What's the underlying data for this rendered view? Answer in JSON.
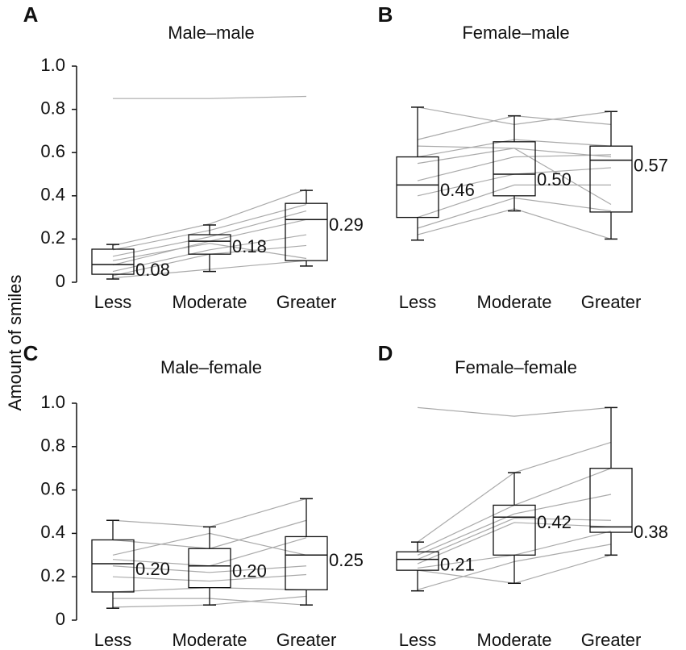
{
  "ylabel": "Amount of smiles",
  "chart_data": [
    {
      "type": "box",
      "panel": "A",
      "title": "Male–male",
      "categories": [
        "Less",
        "Moderate",
        "Greater"
      ],
      "ylim": [
        0,
        1
      ],
      "yticks": [
        0,
        0.2,
        0.4,
        0.6,
        0.8,
        {
          "value": 1,
          "label": "1.0"
        }
      ],
      "boxes": [
        {
          "min": 0.015,
          "q1": 0.037,
          "median": 0.082,
          "q3": 0.153,
          "max": 0.175
        },
        {
          "min": 0.05,
          "q1": 0.13,
          "median": 0.19,
          "q3": 0.22,
          "max": 0.265
        },
        {
          "min": 0.075,
          "q1": 0.1,
          "median": 0.29,
          "q3": 0.365,
          "max": 0.425
        }
      ],
      "means": [
        0.08,
        0.18,
        0.29
      ],
      "value_labels": [
        "0.08",
        "0.18",
        "0.29"
      ],
      "line_color": "#aaaaaa",
      "subjects": [
        {
          "values": [
            0.85,
            0.85,
            0.86
          ]
        },
        {
          "values": [
            0.17,
            0.27,
            0.43
          ]
        },
        {
          "values": [
            0.15,
            0.24,
            0.36
          ]
        },
        {
          "values": [
            0.12,
            0.21,
            0.33
          ]
        },
        {
          "values": [
            0.08,
            0.19,
            0.29
          ]
        },
        {
          "values": [
            0.05,
            0.15,
            0.22
          ]
        },
        {
          "values": [
            0.03,
            0.13,
            0.17
          ]
        },
        {
          "values": [
            0.02,
            0.06,
            0.1
          ]
        },
        {
          "values": [
            0.1,
            0.18,
            0.11
          ]
        }
      ]
    },
    {
      "type": "box",
      "panel": "B",
      "title": "Female–male",
      "categories": [
        "Less",
        "Moderate",
        "Greater"
      ],
      "ylim": [
        0,
        1
      ],
      "boxes": [
        {
          "min": 0.195,
          "q1": 0.3,
          "median": 0.45,
          "q3": 0.58,
          "max": 0.81
        },
        {
          "min": 0.33,
          "q1": 0.4,
          "median": 0.5,
          "q3": 0.65,
          "max": 0.77
        },
        {
          "min": 0.2,
          "q1": 0.325,
          "median": 0.565,
          "q3": 0.63,
          "max": 0.79
        }
      ],
      "means": [
        0.46,
        0.5,
        0.57
      ],
      "value_labels": [
        "0.46",
        "0.50",
        "0.57"
      ],
      "line_color": "#aaaaaa",
      "subjects": [
        {
          "values": [
            0.81,
            0.73,
            0.79
          ]
        },
        {
          "values": [
            0.66,
            0.77,
            0.73
          ]
        },
        {
          "values": [
            0.58,
            0.66,
            0.63
          ]
        },
        {
          "values": [
            0.55,
            0.62,
            0.58
          ]
        },
        {
          "values": [
            0.47,
            0.58,
            0.59
          ]
        },
        {
          "values": [
            0.4,
            0.5,
            0.53
          ]
        },
        {
          "values": [
            0.3,
            0.45,
            0.45
          ]
        },
        {
          "values": [
            0.25,
            0.39,
            0.33
          ]
        },
        {
          "values": [
            0.22,
            0.34,
            0.2
          ]
        },
        {
          "values": [
            0.63,
            0.62,
            0.36
          ]
        }
      ]
    },
    {
      "type": "box",
      "panel": "C",
      "title": "Male–female",
      "categories": [
        "Less",
        "Moderate",
        "Greater"
      ],
      "ylim": [
        0,
        1
      ],
      "yticks": [
        0,
        0.2,
        0.4,
        0.6,
        0.8,
        {
          "value": 1,
          "label": "1.0"
        }
      ],
      "boxes": [
        {
          "min": 0.055,
          "q1": 0.13,
          "median": 0.26,
          "q3": 0.37,
          "max": 0.46
        },
        {
          "min": 0.07,
          "q1": 0.15,
          "median": 0.25,
          "q3": 0.33,
          "max": 0.43
        },
        {
          "min": 0.07,
          "q1": 0.14,
          "median": 0.3,
          "q3": 0.385,
          "max": 0.56
        }
      ],
      "means": [
        0.2,
        0.2,
        0.25
      ],
      "value_labels": [
        "0.20",
        "0.20",
        "0.25"
      ],
      "line_color": "#aaaaaa",
      "subjects": [
        {
          "values": [
            0.46,
            0.43,
            0.56
          ]
        },
        {
          "values": [
            0.37,
            0.33,
            0.46
          ]
        },
        {
          "values": [
            0.3,
            0.4,
            0.3
          ]
        },
        {
          "values": [
            0.28,
            0.25,
            0.38
          ]
        },
        {
          "values": [
            0.25,
            0.22,
            0.25
          ]
        },
        {
          "values": [
            0.2,
            0.18,
            0.21
          ]
        },
        {
          "values": [
            0.13,
            0.15,
            0.14
          ]
        },
        {
          "values": [
            0.1,
            0.1,
            0.07
          ]
        },
        {
          "values": [
            0.06,
            0.07,
            0.11
          ]
        }
      ]
    },
    {
      "type": "box",
      "panel": "D",
      "title": "Female–female",
      "categories": [
        "Less",
        "Moderate",
        "Greater"
      ],
      "ylim": [
        0,
        1
      ],
      "boxes": [
        {
          "min": 0.135,
          "q1": 0.23,
          "median": 0.28,
          "q3": 0.315,
          "max": 0.36
        },
        {
          "min": 0.17,
          "q1": 0.3,
          "median": 0.475,
          "q3": 0.53,
          "max": 0.68
        },
        {
          "min": 0.3,
          "q1": 0.405,
          "median": 0.43,
          "q3": 0.7,
          "max": 0.98
        }
      ],
      "means": [
        0.21,
        0.42,
        0.38
      ],
      "value_labels": [
        "0.21",
        "0.42",
        "0.38"
      ],
      "line_color": "#aaaaaa",
      "subjects": [
        {
          "values": [
            0.98,
            0.94,
            0.98
          ]
        },
        {
          "values": [
            0.36,
            0.68,
            0.82
          ]
        },
        {
          "values": [
            0.32,
            0.53,
            0.7
          ]
        },
        {
          "values": [
            0.3,
            0.49,
            0.58
          ]
        },
        {
          "values": [
            0.28,
            0.47,
            0.46
          ]
        },
        {
          "values": [
            0.26,
            0.45,
            0.43
          ]
        },
        {
          "values": [
            0.24,
            0.3,
            0.41
          ]
        },
        {
          "values": [
            0.23,
            0.17,
            0.3
          ]
        },
        {
          "values": [
            0.14,
            0.27,
            0.35
          ]
        }
      ]
    }
  ]
}
